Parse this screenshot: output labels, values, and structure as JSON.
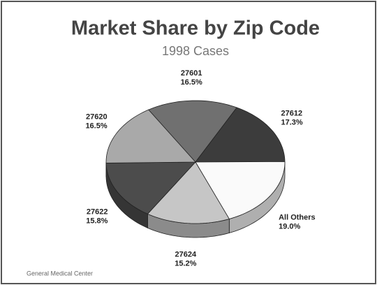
{
  "chart_data": {
    "type": "pie",
    "title": "Market Share by Zip Code",
    "subtitle": "1998 Cases",
    "categories": [
      "27601",
      "27612",
      "All Others",
      "27624",
      "27622",
      "27620"
    ],
    "values": [
      16.5,
      17.3,
      19.0,
      15.2,
      15.8,
      16.5
    ],
    "value_labels": [
      "16.5%",
      "17.3%",
      "19.0%",
      "15.2%",
      "15.8%",
      "16.5%"
    ],
    "colors": [
      "#707070",
      "#3c3c3c",
      "#fafafa",
      "#c6c6c6",
      "#4c4c4c",
      "#a9a9a9"
    ],
    "source": "General Medical Center"
  }
}
